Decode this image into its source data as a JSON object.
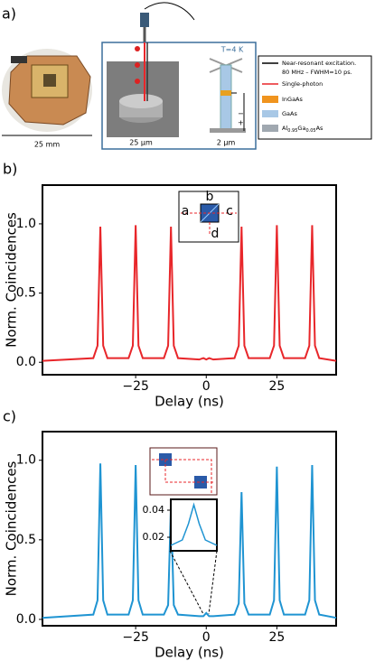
{
  "figure": {
    "panel_labels": [
      "a)",
      "b)",
      "c)"
    ],
    "photo_scale": "25 mm",
    "sem_scale": "25 µm",
    "pillar_scale": "2 µm",
    "temperature": "T=4 K",
    "bias": [
      "−",
      "+"
    ],
    "legend": {
      "excitation": [
        "Near-resonant excitation.",
        "80 MHz – FWHM=10 ps."
      ],
      "photon": "Single-photon",
      "materials": [
        "InGaAs",
        "GaAs"
      ],
      "barrier": [
        "Al",
        "0.95",
        "Ga",
        "0.05",
        "As"
      ]
    }
  },
  "chart_data": [
    {
      "type": "line",
      "xlabel": "Delay (ns)",
      "ylabel": "Norm. Coincidences",
      "xlim": [
        -58,
        46
      ],
      "ylim": [
        -0.09,
        1.28
      ],
      "xticks": [
        {
          "value": -25,
          "label": "−25"
        },
        0,
        25
      ],
      "yticks": [
        {
          "value": 0,
          "label": "0.0"
        },
        {
          "value": 0.5,
          "label": "0.5"
        },
        {
          "value": 1,
          "label": "1.0"
        }
      ],
      "annotations": [
        "a",
        "b",
        "c",
        "d"
      ],
      "x": [
        -58,
        -40,
        -38.5,
        -37.5,
        -36.5,
        -35,
        -27.5,
        -26,
        -25,
        -24,
        -22.5,
        -15,
        -13.5,
        -12.5,
        -11.5,
        -10,
        -2.5,
        -1,
        0,
        1,
        2.5,
        10,
        11.5,
        12.5,
        13.5,
        15,
        22.5,
        24,
        25,
        26,
        27.5,
        35,
        36.5,
        37.5,
        38.5,
        40,
        46
      ],
      "series": [
        {
          "color": "#e8262a",
          "values": [
            0.01,
            0.03,
            0.12,
            0.98,
            0.12,
            0.03,
            0.03,
            0.12,
            0.99,
            0.12,
            0.03,
            0.03,
            0.12,
            0.98,
            0.12,
            0.03,
            0.02,
            0.03,
            0.02,
            0.03,
            0.02,
            0.03,
            0.12,
            0.98,
            0.12,
            0.03,
            0.03,
            0.12,
            0.99,
            0.12,
            0.03,
            0.03,
            0.12,
            0.99,
            0.12,
            0.03,
            0.01
          ]
        }
      ]
    },
    {
      "type": "line",
      "xlabel": "Delay (ns)",
      "ylabel": "Norm. Coincidences",
      "xlim": [
        -58,
        46
      ],
      "ylim": [
        -0.04,
        1.18
      ],
      "xticks": [
        {
          "value": -25,
          "label": "−25"
        },
        0,
        25
      ],
      "yticks": [
        {
          "value": 0,
          "label": "0.0"
        },
        {
          "value": 0.5,
          "label": "0.5"
        },
        {
          "value": 1,
          "label": "1.0"
        }
      ],
      "x": [
        -58,
        -40,
        -38.5,
        -37.5,
        -36.5,
        -35,
        -27.5,
        -26,
        -25,
        -24,
        -22.5,
        -15,
        -13.5,
        -12.5,
        -11.5,
        -10,
        -2.5,
        -1,
        0,
        1,
        2.5,
        10,
        11.5,
        12.5,
        13.5,
        15,
        22.5,
        24,
        25,
        26,
        27.5,
        35,
        36.5,
        37.5,
        38.5,
        40,
        46
      ],
      "series": [
        {
          "color": "#1f94d2",
          "values": [
            0.01,
            0.03,
            0.12,
            0.98,
            0.12,
            0.03,
            0.03,
            0.12,
            0.97,
            0.12,
            0.03,
            0.03,
            0.09,
            0.72,
            0.09,
            0.03,
            0.02,
            0.02,
            0.04,
            0.02,
            0.02,
            0.03,
            0.1,
            0.8,
            0.1,
            0.03,
            0.03,
            0.12,
            0.96,
            0.12,
            0.03,
            0.03,
            0.12,
            0.97,
            0.12,
            0.03,
            0.01
          ]
        }
      ]
    },
    {
      "type": "line",
      "xlim": [
        -3,
        3
      ],
      "ylim": [
        0.01,
        0.048
      ],
      "yticks": [
        0.02,
        0.04
      ],
      "x": [
        -3,
        -1.5,
        -0.7,
        0,
        0.7,
        1.5,
        3
      ],
      "series": [
        {
          "color": "#1f94d2",
          "values": [
            0.014,
            0.018,
            0.03,
            0.044,
            0.03,
            0.018,
            0.014
          ]
        }
      ]
    }
  ]
}
